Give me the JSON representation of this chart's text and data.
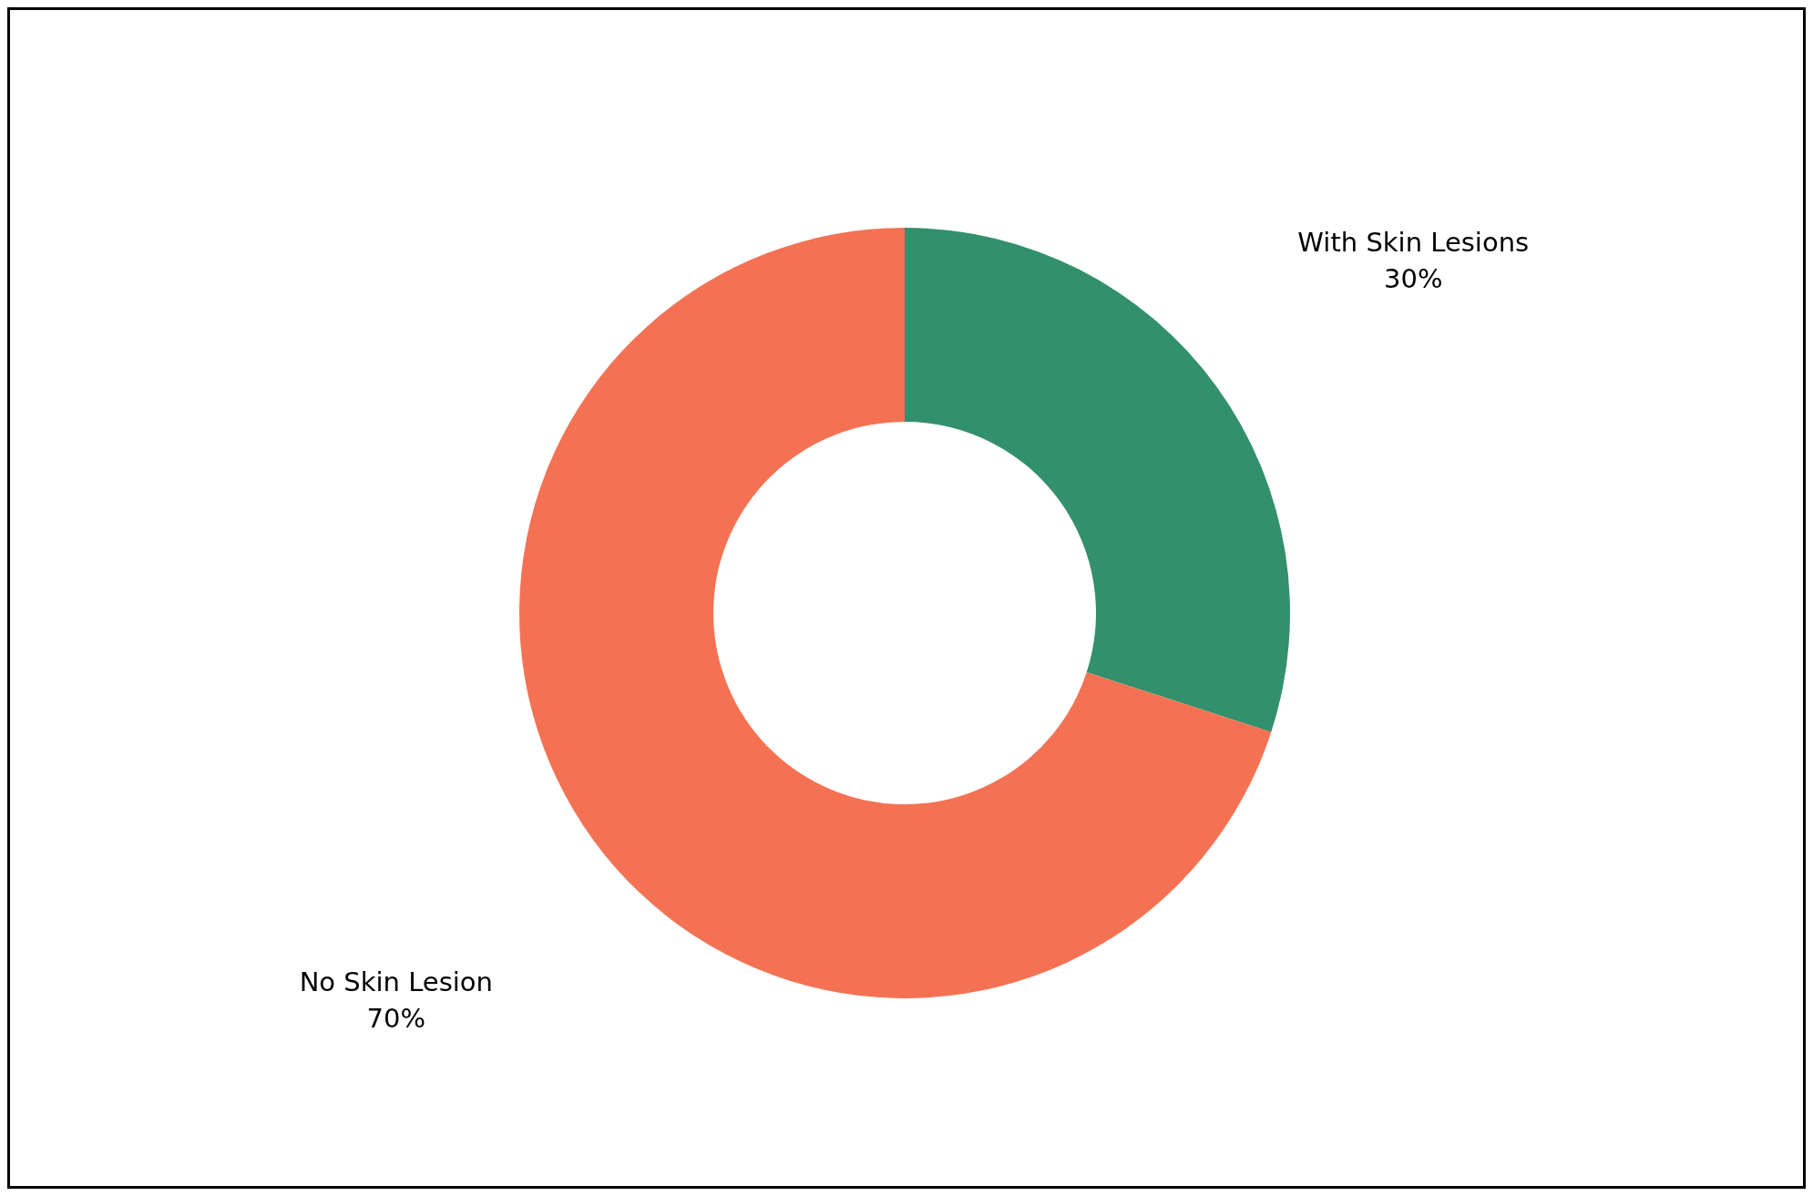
{
  "chart_data": {
    "type": "donut",
    "categories": [
      "With Skin Lesions",
      "No Skin Lesion"
    ],
    "values": [
      30,
      70
    ],
    "colors": [
      "#33906c",
      "#f47253"
    ],
    "value_labels": [
      "30%",
      "70%"
    ]
  }
}
